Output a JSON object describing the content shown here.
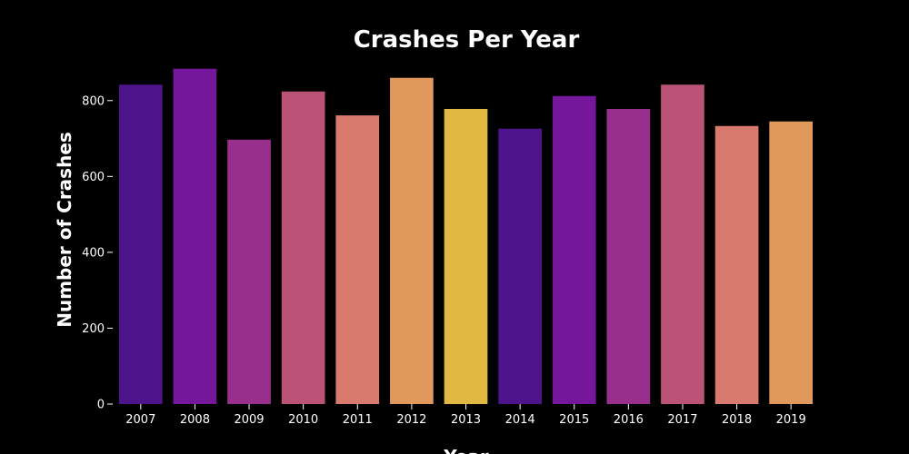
{
  "chart_data": {
    "type": "bar",
    "title": "Crashes Per Year",
    "xlabel": "Year",
    "ylabel": "Number of Crashes",
    "categories": [
      "2007",
      "2008",
      "2009",
      "2010",
      "2011",
      "2012",
      "2013",
      "2014",
      "2015",
      "2016",
      "2017",
      "2018",
      "2019"
    ],
    "values": [
      842,
      884,
      697,
      824,
      761,
      860,
      778,
      726,
      812,
      778,
      842,
      733,
      745
    ],
    "ylim": [
      0,
      900
    ],
    "yticks": [
      0,
      200,
      400,
      600,
      800
    ],
    "grid": false,
    "legend": "none",
    "colors": [
      "#4d148c",
      "#74179a",
      "#982f8c",
      "#bb5278",
      "#d87b6e",
      "#e1985c",
      "#e0b842",
      "#4d148c",
      "#74179a",
      "#982f8c",
      "#bb5278",
      "#d87b6e",
      "#e1985c"
    ],
    "background": "#000000",
    "text_color": "#ffffff"
  }
}
